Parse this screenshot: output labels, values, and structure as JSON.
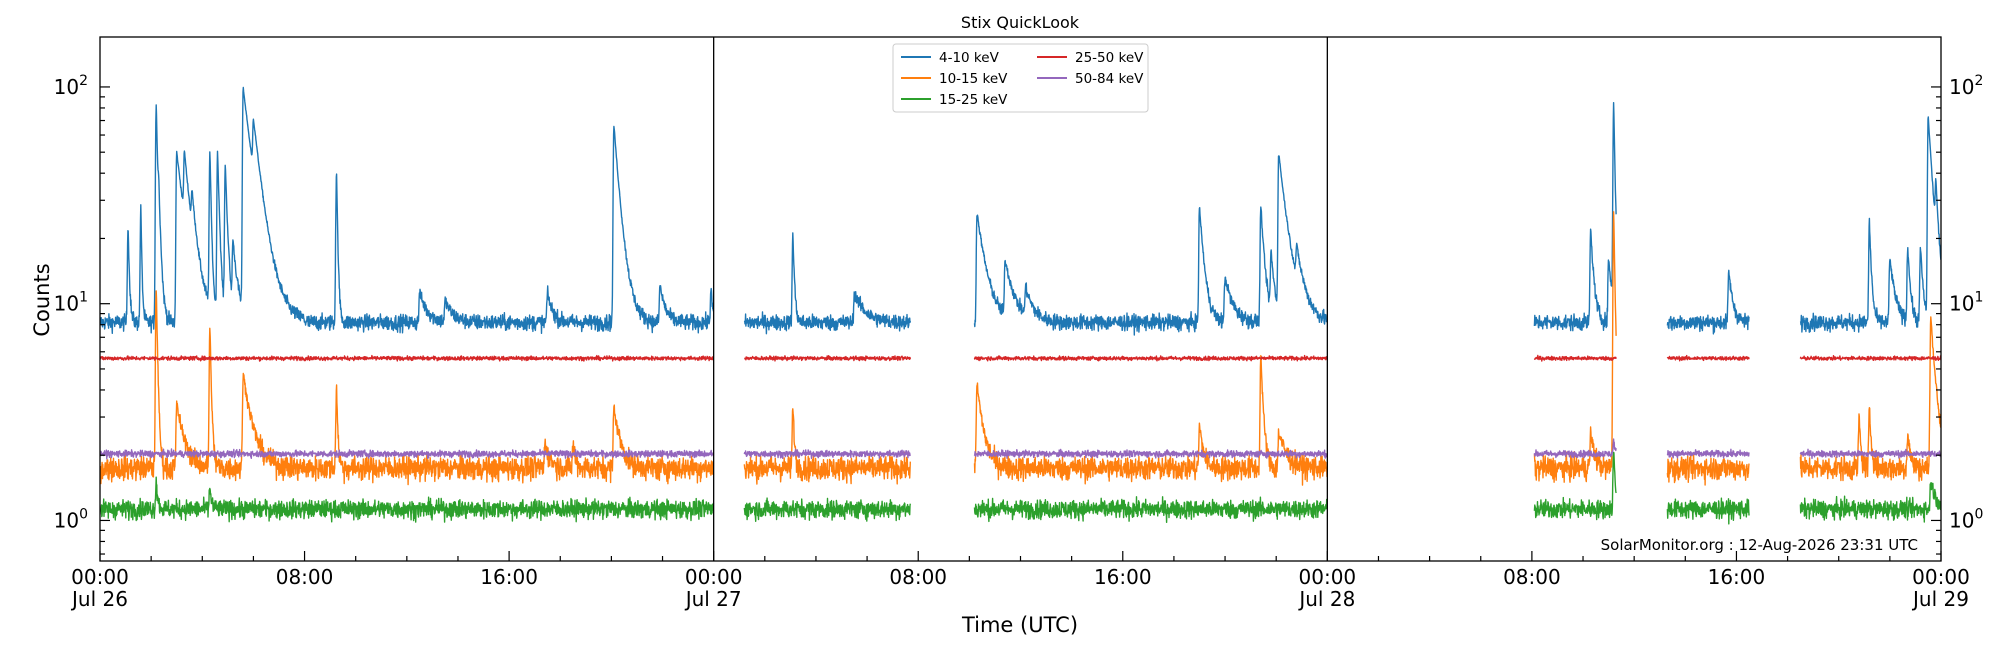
{
  "chart_data": {
    "type": "line",
    "title": "Stix QuickLook",
    "xlabel": "Time (UTC)",
    "ylabel": "Counts",
    "y_scale": "log",
    "ylim": [
      0.65,
      170
    ],
    "y_ticks": [
      {
        "value": 1,
        "base": "10",
        "exp": "0"
      },
      {
        "value": 10,
        "base": "10",
        "exp": "1"
      },
      {
        "value": 100,
        "base": "10",
        "exp": "2"
      }
    ],
    "x_range_hours": [
      0,
      72
    ],
    "x_ticks": [
      {
        "hour": 0,
        "time": "00:00",
        "date": "Jul 26"
      },
      {
        "hour": 8,
        "time": "08:00",
        "date": ""
      },
      {
        "hour": 16,
        "time": "16:00",
        "date": ""
      },
      {
        "hour": 24,
        "time": "00:00",
        "date": "Jul 27"
      },
      {
        "hour": 32,
        "time": "08:00",
        "date": ""
      },
      {
        "hour": 40,
        "time": "16:00",
        "date": ""
      },
      {
        "hour": 48,
        "time": "00:00",
        "date": "Jul 28"
      },
      {
        "hour": 56,
        "time": "08:00",
        "date": ""
      },
      {
        "hour": 64,
        "time": "16:00",
        "date": ""
      },
      {
        "hour": 72,
        "time": "00:00",
        "date": "Jul 29"
      }
    ],
    "day_dividers_hours": [
      24,
      48
    ],
    "data_segments_hours": [
      [
        0,
        24
      ],
      [
        25.2,
        31.7
      ],
      [
        34.2,
        48
      ],
      [
        56.1,
        59.3
      ],
      [
        61.3,
        64.5
      ],
      [
        66.5,
        72
      ]
    ],
    "legend": {
      "placement": "top-center",
      "columns": 2
    },
    "grid": false,
    "series": [
      {
        "name": "4-10 keV",
        "color": "#1f77b4",
        "baseline": 8.2,
        "noise": 0.06,
        "peaks": [
          [
            1.1,
            15,
            0.05
          ],
          [
            1.6,
            20,
            0.04
          ],
          [
            2.2,
            75,
            0.07
          ],
          [
            2.3,
            12,
            0.1
          ],
          [
            3.0,
            42,
            0.35
          ],
          [
            3.3,
            25,
            0.25
          ],
          [
            3.6,
            10,
            0.2
          ],
          [
            4.3,
            40,
            0.06
          ],
          [
            4.6,
            42,
            0.08
          ],
          [
            4.9,
            35,
            0.1
          ],
          [
            5.2,
            10,
            0.2
          ],
          [
            5.6,
            90,
            0.4
          ],
          [
            6.0,
            30,
            0.35
          ],
          [
            9.25,
            33,
            0.05
          ],
          [
            20.1,
            58,
            0.25
          ],
          [
            12.5,
            3,
            0.3
          ],
          [
            13.5,
            2,
            0.3
          ],
          [
            17.5,
            3,
            0.2
          ],
          [
            21.9,
            4,
            0.2
          ],
          [
            23.9,
            4,
            0.05
          ],
          [
            27.1,
            13,
            0.06
          ],
          [
            29.5,
            3,
            0.4
          ],
          [
            34.3,
            18,
            0.35
          ],
          [
            35.4,
            7,
            0.35
          ],
          [
            36.2,
            3,
            0.3
          ],
          [
            43.0,
            20,
            0.18
          ],
          [
            44.0,
            5,
            0.3
          ],
          [
            45.4,
            20,
            0.15
          ],
          [
            45.8,
            8,
            0.15
          ],
          [
            46.1,
            40,
            0.35
          ],
          [
            46.8,
            5,
            0.3
          ],
          [
            58.3,
            14,
            0.12
          ],
          [
            59.2,
            75,
            0.06
          ],
          [
            59.0,
            8,
            0.15
          ],
          [
            63.7,
            6,
            0.15
          ],
          [
            69.2,
            16,
            0.08
          ],
          [
            70.0,
            8,
            0.2
          ],
          [
            70.7,
            10,
            0.1
          ],
          [
            71.2,
            10,
            0.1
          ],
          [
            71.5,
            65,
            0.2
          ],
          [
            71.8,
            15,
            0.1
          ]
        ]
      },
      {
        "name": "10-15 keV",
        "color": "#ff7f0e",
        "baseline": 1.75,
        "noise": 0.09,
        "peaks": [
          [
            2.2,
            10,
            0.06
          ],
          [
            3.0,
            1.7,
            0.3
          ],
          [
            4.3,
            6,
            0.06
          ],
          [
            5.6,
            3,
            0.35
          ],
          [
            9.25,
            2.5,
            0.05
          ],
          [
            20.1,
            1.6,
            0.25
          ],
          [
            17.4,
            0.5,
            0.2
          ],
          [
            18.5,
            0.5,
            0.1
          ],
          [
            27.1,
            1.6,
            0.06
          ],
          [
            34.3,
            2.5,
            0.25
          ],
          [
            43.0,
            1,
            0.15
          ],
          [
            45.4,
            4,
            0.1
          ],
          [
            46.1,
            0.8,
            0.3
          ],
          [
            58.3,
            0.8,
            0.15
          ],
          [
            59.2,
            25,
            0.06
          ],
          [
            68.8,
            1.3,
            0.06
          ],
          [
            69.2,
            1.5,
            0.08
          ],
          [
            70.7,
            0.8,
            0.1
          ],
          [
            71.6,
            7,
            0.2
          ]
        ]
      },
      {
        "name": "15-25 keV",
        "color": "#2ca02c",
        "baseline": 1.13,
        "noise": 0.07,
        "peaks": [
          [
            2.2,
            0.4,
            0.06
          ],
          [
            4.3,
            0.3,
            0.06
          ],
          [
            59.2,
            1.0,
            0.06
          ],
          [
            71.6,
            0.4,
            0.2
          ]
        ]
      },
      {
        "name": "25-50 keV",
        "color": "#d62728",
        "baseline": 5.6,
        "noise": 0.015,
        "peaks": []
      },
      {
        "name": "50-84 keV",
        "color": "#9467bd",
        "baseline": 2.03,
        "noise": 0.025,
        "peaks": [
          [
            59.2,
            0.3,
            0.06
          ]
        ]
      }
    ]
  },
  "footer": {
    "credit": "SolarMonitor.org : 12-Aug-2026 23:31 UTC"
  }
}
